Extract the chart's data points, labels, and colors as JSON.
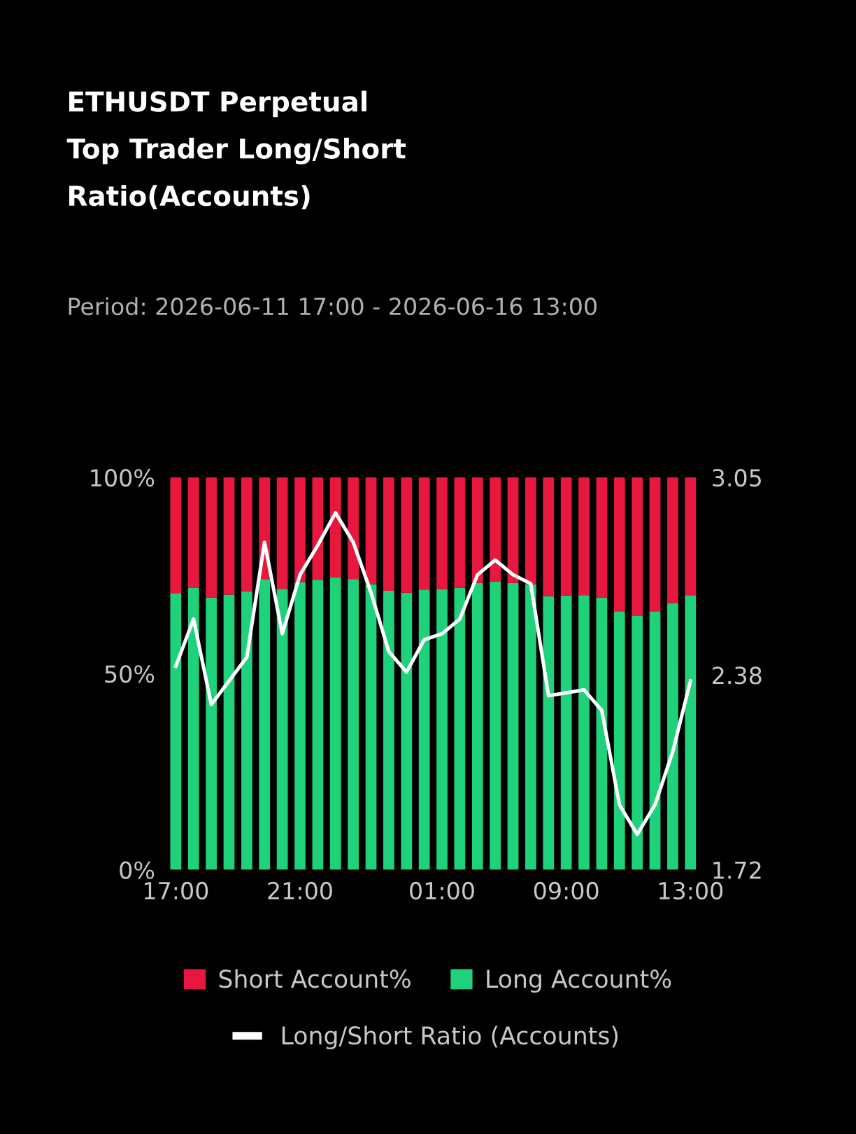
{
  "chart_data": {
    "type": "bar",
    "stacked": true,
    "title": "ETHUSDT Perpetual\nTop Trader Long/Short\nRatio(Accounts)",
    "subtitle": "Period: 2026-06-11 17:00 - 2026-06-16 13:00",
    "categories": [
      "17:00",
      null,
      null,
      null,
      null,
      null,
      null,
      "21:00",
      null,
      null,
      null,
      null,
      null,
      null,
      null,
      "01:00",
      null,
      null,
      null,
      null,
      null,
      null,
      "09:00",
      null,
      null,
      null,
      null,
      null,
      null,
      "13:00"
    ],
    "ylim": [
      0,
      100
    ],
    "yticks": [
      {
        "value": 0,
        "label": "0%"
      },
      {
        "value": 50,
        "label": "50%"
      },
      {
        "value": 100,
        "label": "100%"
      }
    ],
    "y2lim": [
      1.72,
      3.05
    ],
    "y2ticks": [
      1.72,
      2.38,
      3.05
    ],
    "series": [
      {
        "name": "Long Account%",
        "color": "#1fd17a",
        "values": [
          70.5,
          71.8,
          69.4,
          70.1,
          71.0,
          74.1,
          71.6,
          73.3,
          73.9,
          74.6,
          74.1,
          72.8,
          71.1,
          70.6,
          71.4,
          71.5,
          71.9,
          73.1,
          73.5,
          73.1,
          72.8,
          69.7,
          69.9,
          70.0,
          69.4,
          65.9,
          64.7,
          65.9,
          68.0,
          70.0
        ]
      },
      {
        "name": "Short Account%",
        "color": "#e8173f",
        "values": [
          29.5,
          28.2,
          30.6,
          29.9,
          29.0,
          25.9,
          28.4,
          26.7,
          26.1,
          25.4,
          25.9,
          27.2,
          28.9,
          29.4,
          28.6,
          28.5,
          28.1,
          26.9,
          26.5,
          26.9,
          27.2,
          30.3,
          30.1,
          30.0,
          30.6,
          34.1,
          35.3,
          34.1,
          32.0,
          30.0
        ]
      },
      {
        "name": "Long/Short Ratio (Accounts)",
        "type": "line",
        "axis": "y2",
        "color": "#ffffff",
        "values": [
          2.41,
          2.57,
          2.28,
          2.36,
          2.44,
          2.83,
          2.52,
          2.72,
          2.82,
          2.93,
          2.83,
          2.66,
          2.46,
          2.39,
          2.5,
          2.52,
          2.57,
          2.72,
          2.77,
          2.72,
          2.69,
          2.31,
          2.32,
          2.33,
          2.26,
          1.94,
          1.84,
          1.94,
          2.12,
          2.36
        ]
      }
    ],
    "legend": "bottom"
  }
}
